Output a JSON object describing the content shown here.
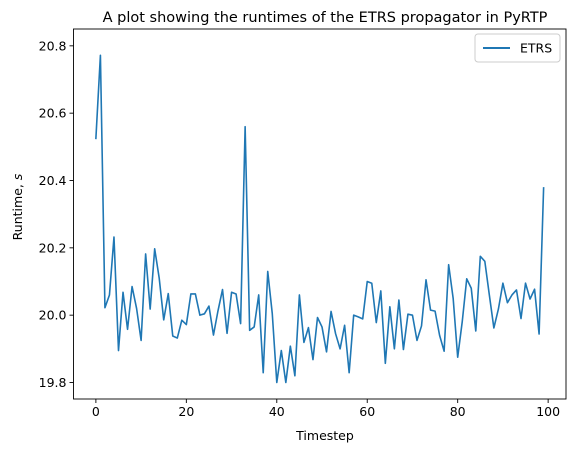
{
  "chart_data": {
    "type": "line",
    "title": "A plot showing the runtimes of the ETRS propagator in PyRTP",
    "xlabel": "Timestep",
    "ylabel": "Runtime, s",
    "xlim": [
      -4.95,
      103.95
    ],
    "ylim": [
      19.751,
      20.85
    ],
    "x_ticks": [
      0,
      20,
      40,
      60,
      80,
      100
    ],
    "y_ticks": [
      19.8,
      20.0,
      20.2,
      20.4,
      20.6,
      20.8
    ],
    "y_tick_labels": [
      "19.8",
      "20.0",
      "20.2",
      "20.4",
      "20.6",
      "20.8"
    ],
    "grid": false,
    "legend_position": "top-right",
    "series": [
      {
        "name": "ETRS",
        "color": "#1f77b4",
        "x": [
          0,
          1,
          2,
          3,
          4,
          5,
          6,
          7,
          8,
          9,
          10,
          11,
          12,
          13,
          14,
          15,
          16,
          17,
          18,
          19,
          20,
          21,
          22,
          23,
          24,
          25,
          26,
          27,
          28,
          29,
          30,
          31,
          32,
          33,
          34,
          35,
          36,
          37,
          38,
          39,
          40,
          41,
          42,
          43,
          44,
          45,
          46,
          47,
          48,
          49,
          50,
          51,
          52,
          53,
          54,
          55,
          56,
          57,
          58,
          59,
          60,
          61,
          62,
          63,
          64,
          65,
          66,
          67,
          68,
          69,
          70,
          71,
          72,
          73,
          74,
          75,
          76,
          77,
          78,
          79,
          80,
          81,
          82,
          83,
          84,
          85,
          86,
          87,
          88,
          89,
          90,
          91,
          92,
          93,
          94,
          95,
          96,
          97,
          98,
          99
        ],
        "values": [
          20.525,
          20.772,
          20.022,
          20.06,
          20.232,
          19.895,
          20.068,
          19.958,
          20.085,
          20.02,
          19.925,
          20.182,
          20.018,
          20.197,
          20.11,
          19.986,
          20.064,
          19.938,
          19.932,
          19.985,
          19.972,
          20.063,
          20.063,
          20.0,
          20.004,
          20.027,
          19.941,
          20.013,
          20.076,
          19.946,
          20.068,
          20.063,
          19.975,
          20.56,
          19.955,
          19.965,
          20.06,
          19.829,
          20.13,
          20.005,
          19.8,
          19.895,
          19.8,
          19.908,
          19.82,
          20.06,
          19.919,
          19.963,
          19.868,
          19.993,
          19.965,
          19.891,
          20.011,
          19.945,
          19.9,
          19.97,
          19.829,
          20.0,
          19.995,
          19.989,
          20.1,
          20.095,
          19.978,
          20.072,
          19.857,
          20.025,
          19.9,
          20.045,
          19.898,
          20.003,
          20.0,
          19.925,
          19.968,
          20.105,
          20.015,
          20.012,
          19.94,
          19.893,
          20.15,
          20.05,
          19.875,
          19.98,
          20.108,
          20.08,
          19.953,
          20.175,
          20.16,
          20.06,
          19.962,
          20.018,
          20.095,
          20.037,
          20.06,
          20.075,
          19.99,
          20.095,
          20.048,
          20.077,
          19.944,
          20.378
        ]
      }
    ]
  }
}
